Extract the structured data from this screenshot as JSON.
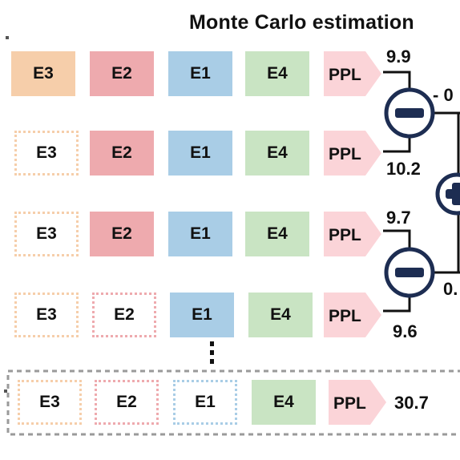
{
  "title": "Monte Carlo estimation",
  "colors": {
    "E3": "#f6ceaa",
    "E2": "#eeaaae",
    "E1": "#a9cde6",
    "E4": "#c9e4c3",
    "PPL": "#fbd4d8",
    "op": "#1d2d52"
  },
  "rows": [
    {
      "items": [
        {
          "label": "E3",
          "style": "filled"
        },
        {
          "label": "E2",
          "style": "filled"
        },
        {
          "label": "E1",
          "style": "filled"
        },
        {
          "label": "E4",
          "style": "filled"
        }
      ],
      "ppl": "PPL",
      "value": "9.9"
    },
    {
      "items": [
        {
          "label": "E3",
          "style": "dashed"
        },
        {
          "label": "E2",
          "style": "filled"
        },
        {
          "label": "E1",
          "style": "filled"
        },
        {
          "label": "E4",
          "style": "filled"
        }
      ],
      "ppl": "PPL",
      "value": "10.2"
    },
    {
      "items": [
        {
          "label": "E3",
          "style": "dashed"
        },
        {
          "label": "E2",
          "style": "filled"
        },
        {
          "label": "E1",
          "style": "filled"
        },
        {
          "label": "E4",
          "style": "filled"
        }
      ],
      "ppl": "PPL",
      "value": "9.7"
    },
    {
      "items": [
        {
          "label": "E3",
          "style": "dashed"
        },
        {
          "label": "E2",
          "style": "dashed"
        },
        {
          "label": "E1",
          "style": "filled"
        },
        {
          "label": "E4",
          "style": "filled"
        }
      ],
      "ppl": "PPL",
      "value": "9.6"
    },
    {
      "items": [
        {
          "label": "E3",
          "style": "dashed"
        },
        {
          "label": "E2",
          "style": "dashed"
        },
        {
          "label": "E1",
          "style": "dashed"
        },
        {
          "label": "E4",
          "style": "filled"
        }
      ],
      "ppl": "PPL",
      "value": "30.7"
    }
  ],
  "ellipsis": "⋮",
  "diff_labels": [
    "- 0",
    "0."
  ]
}
